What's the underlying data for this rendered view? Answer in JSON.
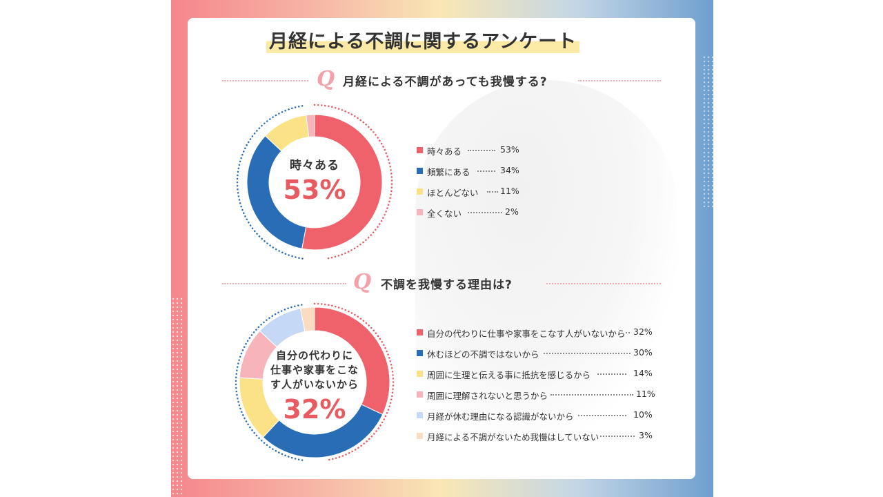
{
  "title": "月経による不調に関するアンケート",
  "chart_data": [
    {
      "type": "pie",
      "title": "月経による不調があっても我慢する?",
      "center_label": "時々ある",
      "center_value": "53%",
      "categories": [
        "時々ある",
        "頻繁にある",
        "ほとんどない",
        "全くない"
      ],
      "values": [
        53,
        34,
        11,
        2
      ],
      "colors": [
        "#f0626b",
        "#2a6db7",
        "#fbe286",
        "#f7b5bb"
      ],
      "value_labels": [
        "53%",
        "34%",
        "11%",
        "2%"
      ]
    },
    {
      "type": "pie",
      "title": "不調を我慢する理由は?",
      "center_label_lines": [
        "自分の代わりに",
        "仕事や家事をこな",
        "す人がいないから"
      ],
      "center_value": "32%",
      "categories": [
        "自分の代わりに仕事や家事をこなす人がいないから",
        "休むほどの不調ではないから",
        "周囲に生理と伝える事に抵抗を感じるから",
        "周囲に理解されないと思うから",
        "月経が休む理由になる認識がないから",
        "月経による不調がないため我慢はしていない"
      ],
      "values": [
        32,
        30,
        14,
        11,
        10,
        3
      ],
      "colors": [
        "#f0626b",
        "#2a6db7",
        "#fbe286",
        "#f7b5bb",
        "#c5d8f5",
        "#fbdcc2"
      ],
      "value_labels": [
        "32%",
        "30%",
        "14%",
        "11%",
        "10%",
        "3%"
      ]
    }
  ],
  "q_mark": "Q"
}
